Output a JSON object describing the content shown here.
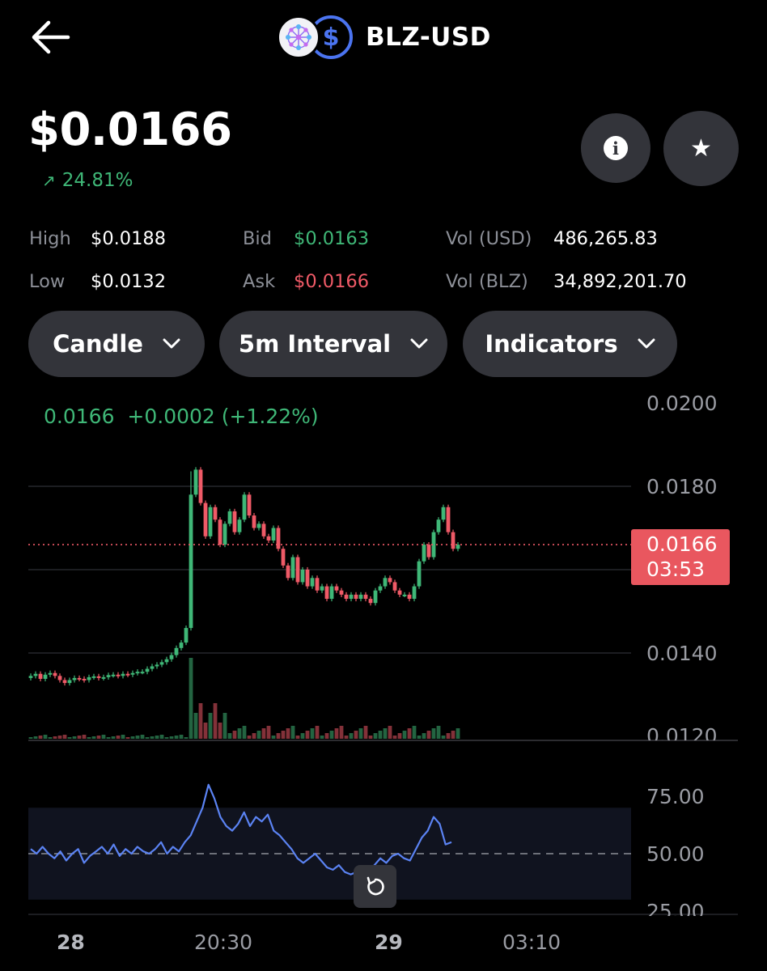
{
  "header": {
    "pair": "BLZ-USD",
    "quote_icon": "$"
  },
  "price": {
    "current": "$0.0166",
    "change_pct": "24.81%",
    "change_icon": "arrow-up-right-icon"
  },
  "stats": {
    "high_label": "High",
    "high_value": "$0.0188",
    "low_label": "Low",
    "low_value": "$0.0132",
    "bid_label": "Bid",
    "bid_value": "$0.0163",
    "ask_label": "Ask",
    "ask_value": "$0.0166",
    "vol_usd_label": "Vol (USD)",
    "vol_usd_value": "486,265.83",
    "vol_blz_label": "Vol (BLZ)",
    "vol_blz_value": "34,892,201.70"
  },
  "controls": {
    "chart_type": "Candle",
    "interval": "5m Interval",
    "indicators": "Indicators"
  },
  "chart_header": {
    "last": "0.0166",
    "delta": "+0.0002",
    "delta_pct": "(+1.22%)"
  },
  "current_tag": {
    "price": "0.0166",
    "countdown": "03:53"
  },
  "colors": {
    "up": "#3fb777",
    "down": "#ef5a67",
    "rsi": "#5b83f3",
    "button_bg": "#33343a"
  },
  "chart_data": {
    "type": "candlestick",
    "interval": "5m",
    "price_axis": {
      "ticks": [
        "0.0200",
        "0.0180",
        "0.0140",
        "0.0120"
      ],
      "ylim": [
        0.012,
        0.02
      ]
    },
    "current_price": 0.0166,
    "x_ticks": [
      "28",
      "20:30",
      "29",
      "03:10"
    ],
    "close_series": [
      0.01345,
      0.0135,
      0.01338,
      0.01348,
      0.01352,
      0.01345,
      0.01335,
      0.01328,
      0.01335,
      0.0134,
      0.01338,
      0.01335,
      0.01342,
      0.01344,
      0.0134,
      0.01342,
      0.01347,
      0.01348,
      0.01345,
      0.0135,
      0.01348,
      0.01352,
      0.01355,
      0.01355,
      0.01362,
      0.01368,
      0.01372,
      0.01378,
      0.01385,
      0.01395,
      0.01412,
      0.01425,
      0.0146,
      0.0178,
      0.0184,
      0.0176,
      0.0168,
      0.0175,
      0.0172,
      0.0166,
      0.0171,
      0.0174,
      0.0169,
      0.0172,
      0.0178,
      0.0173,
      0.017,
      0.0171,
      0.0168,
      0.0167,
      0.017,
      0.0165,
      0.0161,
      0.0158,
      0.0163,
      0.0157,
      0.016,
      0.0156,
      0.0158,
      0.0155,
      0.0156,
      0.0153,
      0.0156,
      0.0155,
      0.0154,
      0.0153,
      0.0154,
      0.0153,
      0.0154,
      0.0153,
      0.0152,
      0.0155,
      0.0156,
      0.0158,
      0.0157,
      0.0155,
      0.0154,
      0.0154,
      0.0153,
      0.0156,
      0.0162,
      0.0166,
      0.0163,
      0.0169,
      0.0172,
      0.0175,
      0.0169,
      0.0165,
      0.0166
    ],
    "rsi": {
      "ticks": [
        "75.00",
        "50.00",
        "25.00"
      ],
      "band": [
        30,
        70
      ],
      "midline": 50,
      "values": [
        52,
        50,
        53,
        50,
        48,
        51,
        47,
        50,
        52,
        46,
        49,
        51,
        53,
        50,
        54,
        49,
        52,
        50,
        53,
        51,
        50,
        52,
        55,
        50,
        53,
        51,
        55,
        58,
        64,
        70,
        80,
        74,
        66,
        62,
        60,
        63,
        68,
        62,
        66,
        64,
        67,
        60,
        58,
        55,
        52,
        48,
        46,
        48,
        50,
        47,
        44,
        43,
        45,
        42,
        41,
        42,
        44,
        43,
        45,
        48,
        46,
        49,
        50,
        48,
        47,
        52,
        57,
        60,
        66,
        63,
        54,
        55
      ]
    }
  },
  "reset_icon": "refresh-icon"
}
